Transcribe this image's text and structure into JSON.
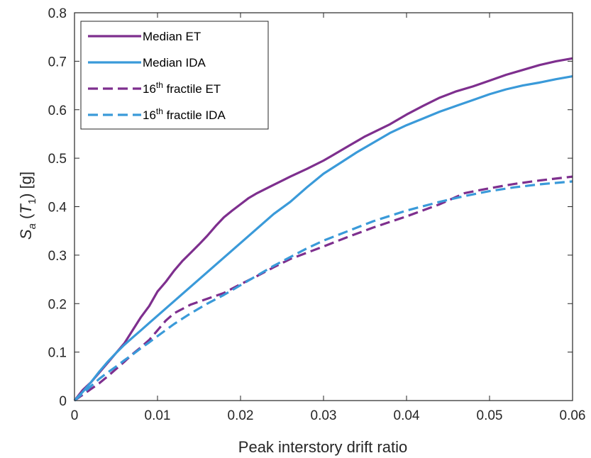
{
  "chart_data": {
    "type": "line",
    "xlabel": "Peak interstory drift ratio",
    "ylabel": {
      "main": "S",
      "sub": "a",
      "open": " (",
      "var": "T",
      "var_sub": "1",
      "close": ") [g]"
    },
    "xlim": [
      0,
      0.06
    ],
    "ylim": [
      0,
      0.8
    ],
    "xticks": [
      0,
      0.01,
      0.02,
      0.03,
      0.04,
      0.05,
      0.06
    ],
    "xtick_labels": [
      "0",
      "0.01",
      "0.02",
      "0.03",
      "0.04",
      "0.05",
      "0.06"
    ],
    "yticks": [
      0,
      0.1,
      0.2,
      0.3,
      0.4,
      0.5,
      0.6,
      0.7,
      0.8
    ],
    "ytick_labels": [
      "0",
      "0.1",
      "0.2",
      "0.3",
      "0.4",
      "0.5",
      "0.6",
      "0.7",
      "0.8"
    ],
    "grid": false,
    "legend_position": "top-left",
    "series": [
      {
        "name": "Median ET",
        "legend": {
          "main": "Median ET"
        },
        "color": "#7E2F8E",
        "dash": "solid",
        "x": [
          0,
          0.001,
          0.002,
          0.003,
          0.004,
          0.005,
          0.006,
          0.007,
          0.008,
          0.009,
          0.01,
          0.011,
          0.012,
          0.013,
          0.014,
          0.015,
          0.016,
          0.017,
          0.018,
          0.019,
          0.02,
          0.021,
          0.022,
          0.024,
          0.026,
          0.028,
          0.03,
          0.031,
          0.033,
          0.035,
          0.038,
          0.04,
          0.042,
          0.044,
          0.046,
          0.048,
          0.05,
          0.052,
          0.054,
          0.056,
          0.058,
          0.06
        ],
        "y": [
          0,
          0.022,
          0.038,
          0.058,
          0.078,
          0.098,
          0.118,
          0.145,
          0.172,
          0.195,
          0.225,
          0.245,
          0.268,
          0.288,
          0.305,
          0.322,
          0.34,
          0.36,
          0.378,
          0.392,
          0.405,
          0.418,
          0.428,
          0.445,
          0.462,
          0.478,
          0.495,
          0.505,
          0.525,
          0.545,
          0.57,
          0.59,
          0.608,
          0.625,
          0.638,
          0.648,
          0.66,
          0.672,
          0.682,
          0.692,
          0.7,
          0.706
        ]
      },
      {
        "name": "Median IDA",
        "legend": {
          "main": "Median IDA"
        },
        "color": "#3A9AD9",
        "dash": "solid",
        "x": [
          0,
          0.001,
          0.002,
          0.003,
          0.004,
          0.005,
          0.006,
          0.007,
          0.008,
          0.009,
          0.01,
          0.012,
          0.014,
          0.016,
          0.018,
          0.02,
          0.022,
          0.024,
          0.026,
          0.028,
          0.03,
          0.032,
          0.034,
          0.036,
          0.038,
          0.04,
          0.042,
          0.044,
          0.046,
          0.048,
          0.05,
          0.052,
          0.054,
          0.056,
          0.058,
          0.06
        ],
        "y": [
          0,
          0.018,
          0.038,
          0.06,
          0.08,
          0.098,
          0.115,
          0.13,
          0.145,
          0.16,
          0.175,
          0.205,
          0.235,
          0.265,
          0.295,
          0.325,
          0.355,
          0.385,
          0.41,
          0.44,
          0.468,
          0.49,
          0.512,
          0.532,
          0.552,
          0.568,
          0.582,
          0.596,
          0.608,
          0.62,
          0.632,
          0.642,
          0.65,
          0.656,
          0.663,
          0.669
        ]
      },
      {
        "name": "16th fractile ET",
        "legend": {
          "main": "16",
          "sup": "th",
          "rest": " fractile ET"
        },
        "color": "#7E2F8E",
        "dash": "dashed",
        "x": [
          0,
          0.001,
          0.002,
          0.003,
          0.004,
          0.005,
          0.006,
          0.007,
          0.008,
          0.009,
          0.01,
          0.011,
          0.012,
          0.014,
          0.016,
          0.018,
          0.02,
          0.022,
          0.024,
          0.026,
          0.028,
          0.03,
          0.033,
          0.036,
          0.04,
          0.044,
          0.047,
          0.05,
          0.053,
          0.056,
          0.06
        ],
        "y": [
          0,
          0.012,
          0.024,
          0.036,
          0.05,
          0.065,
          0.08,
          0.096,
          0.11,
          0.125,
          0.145,
          0.165,
          0.18,
          0.198,
          0.21,
          0.222,
          0.24,
          0.257,
          0.275,
          0.292,
          0.305,
          0.318,
          0.338,
          0.357,
          0.38,
          0.405,
          0.428,
          0.438,
          0.447,
          0.454,
          0.462
        ]
      },
      {
        "name": "16th fractile IDA",
        "legend": {
          "main": "16",
          "sup": "th",
          "rest": " fractile IDA"
        },
        "color": "#3A9AD9",
        "dash": "dashed",
        "x": [
          0,
          0.001,
          0.002,
          0.003,
          0.004,
          0.005,
          0.006,
          0.007,
          0.008,
          0.009,
          0.01,
          0.012,
          0.014,
          0.016,
          0.018,
          0.02,
          0.022,
          0.024,
          0.026,
          0.028,
          0.03,
          0.033,
          0.036,
          0.04,
          0.044,
          0.047,
          0.05,
          0.053,
          0.056,
          0.06
        ],
        "y": [
          0,
          0.015,
          0.03,
          0.045,
          0.058,
          0.07,
          0.083,
          0.095,
          0.108,
          0.12,
          0.133,
          0.158,
          0.18,
          0.2,
          0.218,
          0.238,
          0.258,
          0.278,
          0.296,
          0.314,
          0.33,
          0.35,
          0.37,
          0.392,
          0.41,
          0.422,
          0.432,
          0.44,
          0.446,
          0.452
        ]
      }
    ]
  }
}
